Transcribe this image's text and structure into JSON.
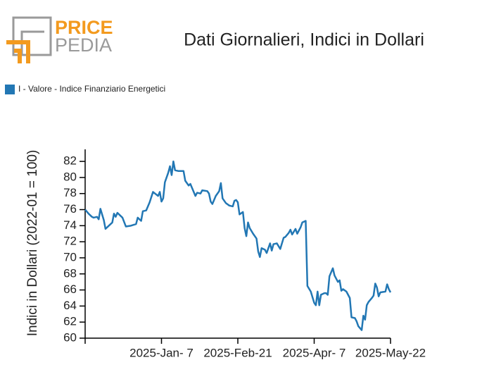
{
  "logo": {
    "line1": "PRICE",
    "line2": "PEDIA"
  },
  "chart_data": {
    "type": "line",
    "title": "Dati Giornalieri, Indici in Dollari",
    "y_label": "Indici in Dollari (2022-01 = 100)",
    "x": [
      "2024-11-23",
      "2024-11-25",
      "2024-11-27",
      "2024-11-28",
      "2024-11-30",
      "2024-12-01",
      "2024-12-02",
      "2024-12-04",
      "2024-12-05",
      "2024-12-07",
      "2024-12-09",
      "2024-12-10",
      "2024-12-11",
      "2024-12-12",
      "2024-12-15",
      "2024-12-17",
      "2024-12-20",
      "2024-12-23",
      "2024-12-24",
      "2024-12-26",
      "2024-12-27",
      "2024-12-29",
      "2024-12-31",
      "2025-01-02",
      "2025-01-05",
      "2025-01-06",
      "2025-01-07",
      "2025-01-08",
      "2025-01-09",
      "2025-01-11",
      "2025-01-12",
      "2025-01-13",
      "2025-01-14",
      "2025-01-15",
      "2025-01-17",
      "2025-01-20",
      "2025-01-21",
      "2025-01-23",
      "2025-01-24",
      "2025-01-27",
      "2025-01-28",
      "2025-01-30",
      "2025-01-31",
      "2025-02-03",
      "2025-02-04",
      "2025-02-05",
      "2025-02-06",
      "2025-02-08",
      "2025-02-10",
      "2025-02-11",
      "2025-02-12",
      "2025-02-14",
      "2025-02-16",
      "2025-02-18",
      "2025-02-19",
      "2025-02-20",
      "2025-02-21",
      "2025-02-22",
      "2025-02-24",
      "2025-02-25",
      "2025-02-26",
      "2025-02-27",
      "2025-02-28",
      "2025-03-02",
      "2025-03-04",
      "2025-03-05",
      "2025-03-06",
      "2025-03-07",
      "2025-03-09",
      "2025-03-10",
      "2025-03-12",
      "2025-03-13",
      "2025-03-14",
      "2025-03-16",
      "2025-03-18",
      "2025-03-20",
      "2025-03-21",
      "2025-03-23",
      "2025-03-24",
      "2025-03-25",
      "2025-03-27",
      "2025-03-28",
      "2025-03-30",
      "2025-03-31",
      "2025-04-02",
      "2025-04-03",
      "2025-04-05",
      "2025-04-07",
      "2025-04-08",
      "2025-04-09",
      "2025-04-10",
      "2025-04-11",
      "2025-04-13",
      "2025-04-14",
      "2025-04-15",
      "2025-04-16",
      "2025-04-18",
      "2025-04-19",
      "2025-04-21",
      "2025-04-22",
      "2025-04-23",
      "2025-04-24",
      "2025-04-26",
      "2025-04-28",
      "2025-04-29",
      "2025-05-01",
      "2025-05-02",
      "2025-05-03",
      "2025-05-05",
      "2025-05-06",
      "2025-05-07",
      "2025-05-08",
      "2025-05-09",
      "2025-05-11",
      "2025-05-12",
      "2025-05-13",
      "2025-05-14",
      "2025-05-15",
      "2025-05-16",
      "2025-05-19",
      "2025-05-20",
      "2025-05-21",
      "2025-05-22"
    ],
    "series": [
      {
        "name": "I - Valore - Indice Finanziario Energetici",
        "color": "#2277b4",
        "values": [
          76.0,
          75.5,
          75.1,
          75.0,
          75.1,
          74.8,
          76.1,
          74.7,
          73.6,
          74.0,
          74.4,
          75.5,
          75.1,
          75.6,
          75.0,
          73.9,
          74.0,
          74.2,
          75.0,
          74.6,
          75.8,
          75.9,
          76.9,
          78.2,
          77.7,
          78.2,
          77.0,
          77.4,
          79.4,
          80.6,
          81.4,
          80.3,
          82.0,
          80.9,
          80.8,
          80.8,
          79.6,
          79.0,
          79.2,
          77.7,
          78.1,
          78.0,
          78.4,
          78.3,
          78.0,
          77.0,
          76.7,
          77.7,
          78.3,
          79.3,
          77.4,
          76.8,
          76.5,
          76.4,
          77.1,
          77.2,
          76.9,
          75.4,
          75.7,
          73.7,
          72.7,
          74.4,
          73.7,
          73.0,
          72.4,
          70.8,
          70.1,
          71.2,
          71.0,
          70.6,
          71.8,
          70.9,
          71.7,
          71.8,
          71.1,
          72.5,
          72.6,
          73.1,
          73.5,
          72.9,
          73.6,
          73.0,
          73.8,
          74.4,
          74.6,
          66.5,
          65.8,
          64.4,
          64.1,
          65.8,
          64.1,
          65.4,
          65.6,
          65.6,
          65.4,
          67.7,
          68.7,
          67.8,
          67.0,
          67.2,
          65.9,
          66.1,
          65.8,
          65.0,
          62.6,
          62.5,
          62.1,
          61.5,
          61.0,
          62.8,
          62.3,
          64.1,
          64.5,
          65.0,
          65.3,
          66.8,
          66.3,
          65.2,
          65.7,
          65.8,
          66.7,
          66.1,
          65.7
        ]
      }
    ],
    "xlim": [
      "2024-11-23",
      "2025-05-22"
    ],
    "xticks": [
      {
        "value": "2025-01-07",
        "label": "2025-Jan- 7"
      },
      {
        "value": "2025-02-21",
        "label": "2025-Feb-21"
      },
      {
        "value": "2025-04-07",
        "label": "2025-Apr- 7"
      },
      {
        "value": "2025-05-22",
        "label": "2025-May-22"
      }
    ],
    "ylim": [
      60,
      83.5
    ],
    "yticks": [
      60,
      62,
      64,
      66,
      68,
      70,
      72,
      74,
      76,
      78,
      80,
      82
    ],
    "legend": "top-left"
  }
}
